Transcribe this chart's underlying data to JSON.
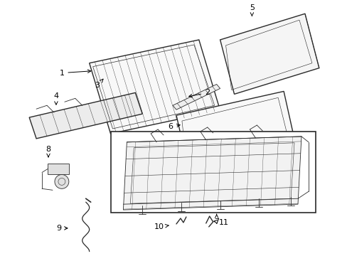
{
  "background_color": "#ffffff",
  "line_color": "#2a2a2a",
  "figsize": [
    4.89,
    3.6
  ],
  "dpi": 100,
  "label_fontsize": 8.0,
  "top_panels": {
    "main_outer": [
      [
        0.13,
        0.6,
        0.44,
        0.6,
        0.5,
        0.88,
        0.2,
        0.88
      ]
    ],
    "main_inner": [
      [
        0.155,
        0.615,
        0.415,
        0.615,
        0.475,
        0.865,
        0.215,
        0.865
      ]
    ]
  }
}
